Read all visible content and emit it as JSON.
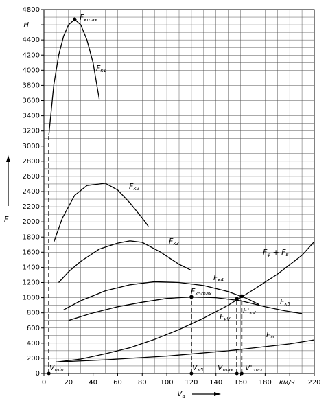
{
  "chart_data": {
    "type": "line",
    "xlim": [
      0,
      220
    ],
    "ylim": [
      0,
      4800
    ],
    "xticks": [
      0,
      20,
      40,
      60,
      80,
      100,
      120,
      140,
      160,
      180,
      {
        "value": 200,
        "label": "км/ч"
      },
      220
    ],
    "yticks": [
      0,
      200,
      400,
      600,
      800,
      1000,
      1200,
      1400,
      1600,
      1800,
      2000,
      2200,
      2400,
      2600,
      2800,
      3000,
      3200,
      3400,
      3600,
      3800,
      4000,
      4200,
      4400,
      {
        "value": 4600,
        "label": "H"
      },
      4800
    ],
    "grid": true,
    "xminor": 10,
    "yminor": 100,
    "color": "#000000",
    "ylabel": "F",
    "xlabel": [
      "V",
      "a"
    ],
    "series": [
      {
        "label": [
          "F",
          "к1"
        ],
        "x": [
          4,
          8,
          12,
          16,
          20,
          25,
          30,
          35,
          40,
          45
        ],
        "values": [
          3150,
          3800,
          4200,
          4450,
          4600,
          4670,
          4600,
          4400,
          4100,
          3620
        ]
      },
      {
        "label": [
          "F",
          "к2"
        ],
        "x": [
          8,
          15,
          25,
          35,
          50,
          60,
          70,
          80,
          85
        ],
        "values": [
          1730,
          2050,
          2350,
          2480,
          2510,
          2420,
          2250,
          2050,
          1940
        ]
      },
      {
        "label": [
          "F",
          "к3"
        ],
        "x": [
          12,
          20,
          30,
          45,
          60,
          70,
          80,
          95,
          110,
          120
        ],
        "values": [
          1200,
          1340,
          1480,
          1640,
          1720,
          1750,
          1730,
          1600,
          1440,
          1360
        ]
      },
      {
        "label": [
          "F",
          "к4"
        ],
        "x": [
          16,
          30,
          50,
          70,
          90,
          110,
          130,
          150,
          165,
          175
        ],
        "values": [
          840,
          960,
          1090,
          1170,
          1210,
          1200,
          1160,
          1080,
          990,
          910
        ]
      },
      {
        "label": [
          "F",
          "к5"
        ],
        "x": [
          20,
          40,
          60,
          80,
          100,
          120,
          140,
          160,
          180,
          195,
          210
        ],
        "values": [
          700,
          800,
          880,
          940,
          990,
          1010,
          1000,
          960,
          880,
          830,
          790
        ]
      },
      {
        "label": [
          "F",
          "ψ",
          " + F",
          "в"
        ],
        "x": [
          10,
          30,
          50,
          70,
          90,
          110,
          130,
          150,
          170,
          190,
          210,
          220
        ],
        "values": [
          150,
          190,
          260,
          340,
          450,
          580,
          730,
          900,
          1100,
          1310,
          1560,
          1740
        ]
      },
      {
        "label": [
          "F",
          "ψ"
        ],
        "x": [
          10,
          50,
          100,
          150,
          200,
          220
        ],
        "values": [
          150,
          180,
          230,
          300,
          390,
          444
        ]
      }
    ],
    "points": [
      {
        "label": [
          "F",
          "кmax"
        ],
        "x": 25,
        "y": 4670
      },
      {
        "label": [
          "F",
          "к5max"
        ],
        "x": 120,
        "y": 1010
      },
      {
        "label": [
          "F",
          "кV"
        ],
        "x": 157,
        "y": 985
      },
      {
        "label": [
          "F'",
          "кV"
        ],
        "x": 161,
        "y": 1020
      }
    ],
    "markers": [
      {
        "label": [
          "V",
          "min"
        ],
        "x": 4,
        "y": 3150
      },
      {
        "label": [
          "V",
          "к5"
        ],
        "x": 120,
        "y": 1010
      },
      {
        "label": [
          "V",
          "max"
        ],
        "x": 157,
        "y": 985
      },
      {
        "label": [
          "V'",
          "max"
        ],
        "x": 161,
        "y": 1020
      }
    ]
  }
}
